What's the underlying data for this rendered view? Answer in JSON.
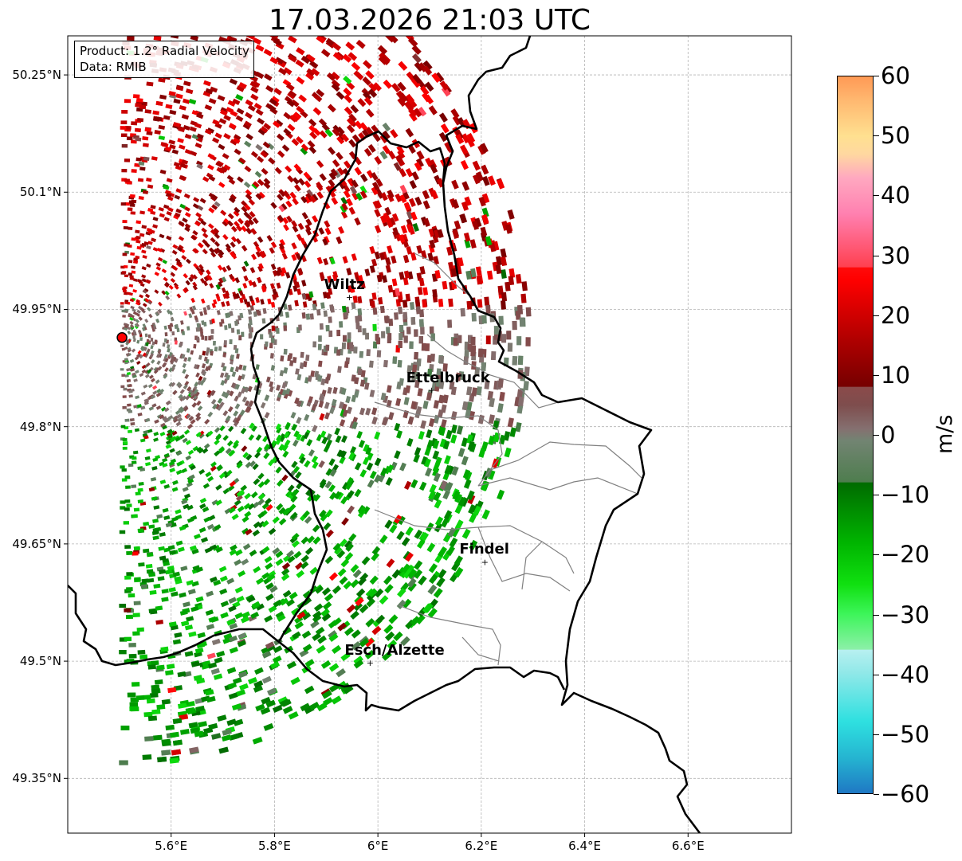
{
  "title": "17.03.2026 21:03 UTC",
  "info": {
    "product": "Product: 1.2° Radial Velocity",
    "source": "Data: RMIB"
  },
  "map": {
    "lat_range": [
      49.28,
      50.3
    ],
    "lon_range": [
      5.4,
      6.8
    ],
    "lat_ticks": [
      {
        "value": 50.25,
        "label": "50.25°N"
      },
      {
        "value": 50.1,
        "label": "50.1°N"
      },
      {
        "value": 49.95,
        "label": "49.95°N"
      },
      {
        "value": 49.8,
        "label": "49.8°N"
      },
      {
        "value": 49.65,
        "label": "49.65°N"
      },
      {
        "value": 49.5,
        "label": "49.5°N"
      },
      {
        "value": 49.35,
        "label": "49.35°N"
      }
    ],
    "lon_ticks": [
      {
        "value": 5.6,
        "label": "5.6°E"
      },
      {
        "value": 5.8,
        "label": "5.8°E"
      },
      {
        "value": 6.0,
        "label": "6°E"
      },
      {
        "value": 6.2,
        "label": "6.2°E"
      },
      {
        "value": 6.4,
        "label": "6.4°E"
      },
      {
        "value": 6.6,
        "label": "6.6°E"
      }
    ],
    "radar_site": {
      "lon": 5.505,
      "lat": 49.914
    },
    "cities": [
      {
        "name": "Wiltz",
        "lon": 5.945,
        "lat": 49.966
      },
      {
        "name": "Ettelbruck",
        "lon": 6.104,
        "lat": 49.847
      },
      {
        "name": "Findel",
        "lon": 6.207,
        "lat": 49.627
      },
      {
        "name": "Esch/Alzette",
        "lon": 5.985,
        "lat": 49.498
      }
    ],
    "colors": {
      "radar_site": "#ff0000",
      "border": "#000000",
      "canton": "#808080",
      "grid": "#b4b4b4"
    }
  },
  "colorbar": {
    "label": "m/s",
    "min": -60,
    "max": 60,
    "ticks": [
      60,
      50,
      40,
      30,
      20,
      10,
      0,
      -10,
      -20,
      -30,
      -40,
      -50,
      -60
    ],
    "stops": [
      {
        "v": -60,
        "c": "#1f78c4"
      },
      {
        "v": -54,
        "c": "#25b5d1"
      },
      {
        "v": -48,
        "c": "#2ee0e0"
      },
      {
        "v": -40,
        "c": "#8fe8e8"
      },
      {
        "v": -36,
        "c": "#b7f0f0"
      },
      {
        "v": -35.9,
        "c": "#8cf0a8"
      },
      {
        "v": -30,
        "c": "#3df55a"
      },
      {
        "v": -25,
        "c": "#10e010"
      },
      {
        "v": -18,
        "c": "#00b400"
      },
      {
        "v": -8,
        "c": "#006b00"
      },
      {
        "v": -7.9,
        "c": "#4e7d4e"
      },
      {
        "v": -1,
        "c": "#728472"
      },
      {
        "v": 1,
        "c": "#857070"
      },
      {
        "v": 5,
        "c": "#7e4d4d"
      },
      {
        "v": 8,
        "c": "#8b4a4a"
      },
      {
        "v": 8.1,
        "c": "#760000"
      },
      {
        "v": 16,
        "c": "#b00000"
      },
      {
        "v": 26,
        "c": "#ff0000"
      },
      {
        "v": 28,
        "c": "#ff0a0a"
      },
      {
        "v": 28.1,
        "c": "#ff4050"
      },
      {
        "v": 37,
        "c": "#ff80b0"
      },
      {
        "v": 43,
        "c": "#ffa8c0"
      },
      {
        "v": 47,
        "c": "#ffd8a0"
      },
      {
        "v": 50,
        "c": "#ffe090"
      },
      {
        "v": 56,
        "c": "#ffb870"
      },
      {
        "v": 60,
        "c": "#ff9955"
      }
    ]
  }
}
